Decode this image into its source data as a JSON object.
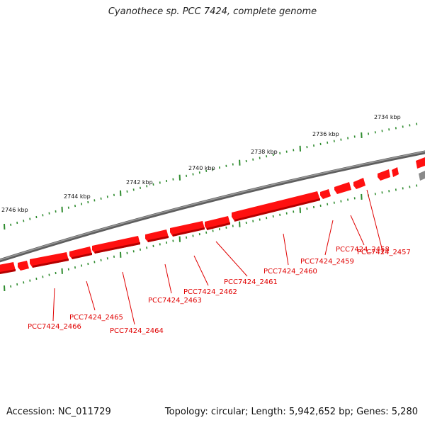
{
  "title": "Cyanothece sp. PCC 7424, complete genome",
  "footer": {
    "accession": "Accession: NC_011729",
    "summary": "Topology: circular; Length: 5,942,652 bp; Genes: 5,280"
  },
  "scale_labels": [
    "2734 kbp",
    "2736 kbp",
    "2738 kbp",
    "2740 kbp",
    "2742 kbp",
    "2744 kbp",
    "2746 kbp"
  ],
  "gene_labels": [
    "PCC7424_2457",
    "PCC7424_2458",
    "PCC7424_2459",
    "PCC7424_2460",
    "PCC7424_2461",
    "PCC7424_2462",
    "PCC7424_2463",
    "PCC7424_2464",
    "PCC7424_2465",
    "PCC7424_2466"
  ],
  "colors": {
    "backbone": "#7a7a7a",
    "gene": "#ff0000",
    "gene_shadow": "#b30000",
    "tick": "#2e8b2e",
    "label": "#e00000"
  }
}
